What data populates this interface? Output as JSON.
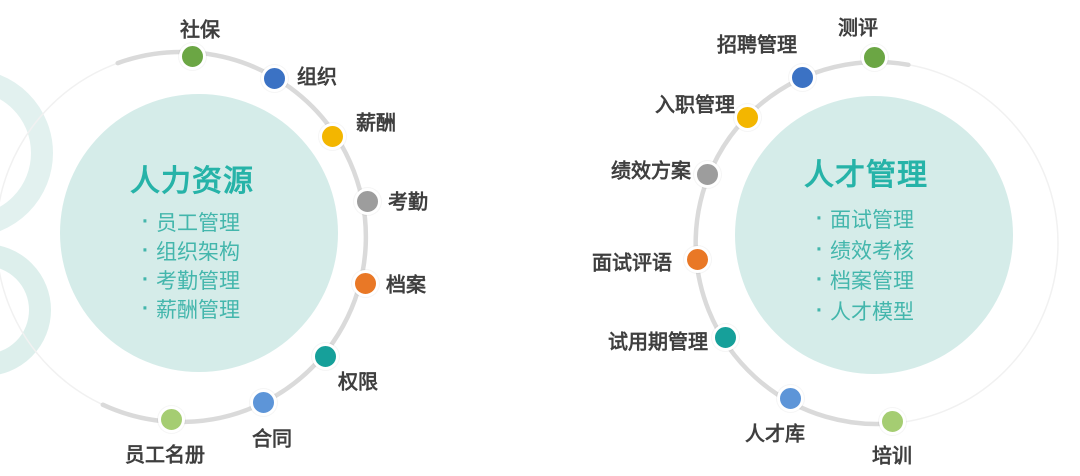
{
  "page": {
    "background": "#ffffff"
  },
  "colors": {
    "title_teal": "#26b3a8",
    "item_teal": "#43b6ac",
    "circle_fill": "#d5ece9",
    "ring_gray": "#dadada",
    "ring_faint": "#f1f1f1",
    "label_dark": "#3f3f3f",
    "watermark_teal": "#e2f1ef",
    "dot_green": "#6ba644",
    "dot_blue": "#3b72c4",
    "dot_yellow": "#f3b600",
    "dot_gray": "#9d9d9d",
    "dot_orange": "#e97826",
    "dot_teal": "#16a09a",
    "dot_lightblue": "#5d95d8",
    "dot_lightgreen": "#a5cd72"
  },
  "diagrams": [
    {
      "id": "hr",
      "title": "人力资源",
      "bullet": "·",
      "items": [
        "员工管理",
        "组织架构",
        "考勤管理",
        "薪酬管理"
      ],
      "nodes": [
        {
          "label": "社保",
          "color": "#6ba644"
        },
        {
          "label": "组织",
          "color": "#3b72c4"
        },
        {
          "label": "薪酬",
          "color": "#f3b600"
        },
        {
          "label": "考勤",
          "color": "#9d9d9d"
        },
        {
          "label": "档案",
          "color": "#e97826"
        },
        {
          "label": "权限",
          "color": "#16a09a"
        },
        {
          "label": "合同",
          "color": "#5d95d8"
        },
        {
          "label": "员工名册",
          "color": "#a5cd72"
        }
      ]
    },
    {
      "id": "talent",
      "title": "人才管理",
      "bullet": "·",
      "items": [
        "面试管理",
        "绩效考核",
        "档案管理",
        "人才模型"
      ],
      "nodes": [
        {
          "label": "测评",
          "color": "#6ba644"
        },
        {
          "label": "招聘管理",
          "color": "#3b72c4"
        },
        {
          "label": "入职管理",
          "color": "#f3b600"
        },
        {
          "label": "绩效方案",
          "color": "#9d9d9d"
        },
        {
          "label": "面试评语",
          "color": "#e97826"
        },
        {
          "label": "试用期管理",
          "color": "#16a09a"
        },
        {
          "label": "人才库",
          "color": "#5d95d8"
        },
        {
          "label": "培训",
          "color": "#a5cd72"
        }
      ]
    }
  ]
}
